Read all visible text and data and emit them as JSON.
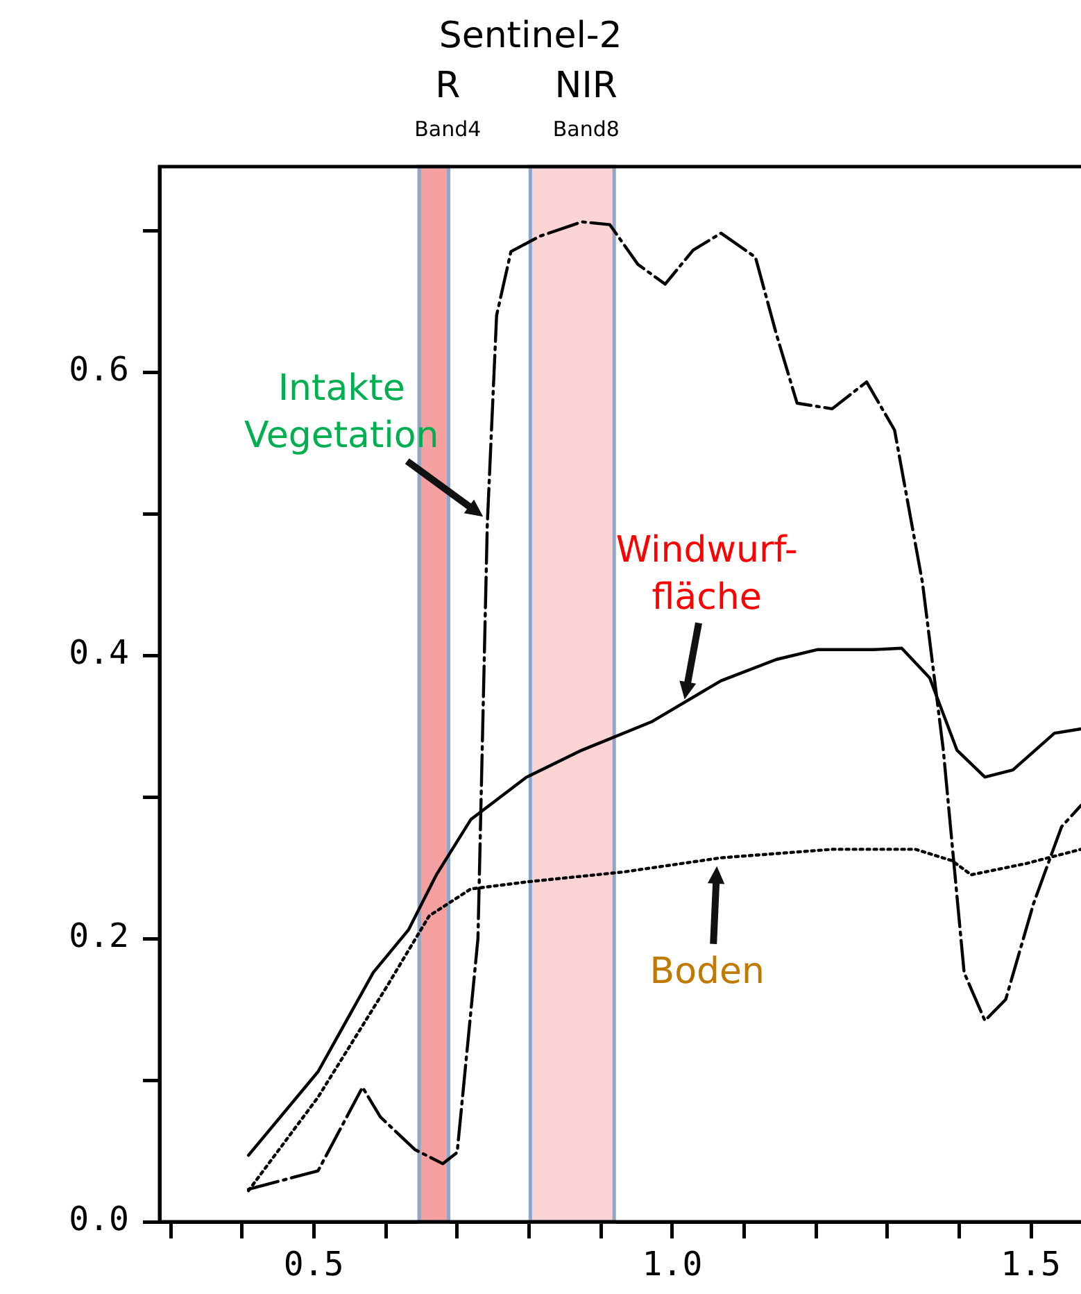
{
  "chart_data": {
    "type": "line",
    "title": "Sentinel-2",
    "xlim": [
      0.285,
      1.57
    ],
    "ylim": [
      0,
      0.745
    ],
    "xticks": [
      {
        "value": 0.3,
        "label": null
      },
      {
        "value": 0.4,
        "label": null
      },
      0.5,
      {
        "value": 0.6,
        "label": null
      },
      {
        "value": 0.7,
        "label": null
      },
      {
        "value": 0.8,
        "label": null
      },
      {
        "value": 0.9,
        "label": null
      },
      {
        "value": 1.0,
        "label": "1.0"
      },
      {
        "value": 1.1,
        "label": null
      },
      {
        "value": 1.2,
        "label": null
      },
      {
        "value": 1.3,
        "label": null
      },
      {
        "value": 1.4,
        "label": null
      },
      1.5
    ],
    "yticks": [
      {
        "value": 0,
        "label": "0.0"
      },
      {
        "value": 0.1,
        "label": null
      },
      0.2,
      {
        "value": 0.3,
        "label": null
      },
      0.4,
      {
        "value": 0.5,
        "label": null
      },
      0.6,
      {
        "value": 0.7,
        "label": null
      }
    ],
    "grid": false,
    "legend": false,
    "marker": "none",
    "series": [
      {
        "color": "#000000",
        "line_style": "dashdot",
        "x": [
          0.409,
          0.506,
          0.568,
          0.593,
          0.641,
          0.68,
          0.7,
          0.729,
          0.742,
          0.755,
          0.775,
          0.816,
          0.874,
          0.913,
          0.952,
          0.99,
          1.029,
          1.068,
          1.116,
          1.145,
          1.174,
          1.223,
          1.271,
          1.31,
          1.349,
          1.378,
          1.407,
          1.436,
          1.465,
          1.504,
          1.543,
          1.57
        ],
        "values": [
          0.023,
          0.036,
          0.095,
          0.074,
          0.051,
          0.041,
          0.049,
          0.2,
          0.492,
          0.64,
          0.685,
          0.696,
          0.706,
          0.704,
          0.676,
          0.662,
          0.686,
          0.698,
          0.681,
          0.627,
          0.578,
          0.574,
          0.593,
          0.559,
          0.451,
          0.333,
          0.176,
          0.142,
          0.157,
          0.225,
          0.279,
          0.294
        ]
      },
      {
        "color": "#000000",
        "line_style": "solid",
        "x": [
          0.409,
          0.506,
          0.583,
          0.632,
          0.671,
          0.719,
          0.797,
          0.874,
          0.971,
          1.068,
          1.145,
          1.203,
          1.281,
          1.32,
          1.359,
          1.397,
          1.436,
          1.475,
          1.533,
          1.57
        ],
        "values": [
          0.047,
          0.106,
          0.176,
          0.206,
          0.245,
          0.284,
          0.314,
          0.333,
          0.353,
          0.382,
          0.397,
          0.404,
          0.404,
          0.405,
          0.384,
          0.333,
          0.314,
          0.319,
          0.345,
          0.348
        ]
      },
      {
        "color": "#000000",
        "line_style": "dotted",
        "x": [
          0.409,
          0.506,
          0.603,
          0.661,
          0.719,
          0.797,
          0.932,
          1.068,
          1.223,
          1.339,
          1.39,
          1.417,
          1.494,
          1.57
        ],
        "values": [
          0.022,
          0.088,
          0.167,
          0.216,
          0.235,
          0.24,
          0.247,
          0.257,
          0.263,
          0.263,
          0.255,
          0.245,
          0.253,
          0.263
        ]
      }
    ],
    "bands": [
      {
        "axis": "x",
        "from": 0.647,
        "to": 0.688,
        "label": "R\nBand4",
        "color": "#f4a0a0"
      },
      {
        "axis": "x",
        "from": 0.802,
        "to": 0.919,
        "label": "NIR\nBand8",
        "color": "#fad4d4"
      }
    ],
    "annotations": [
      {
        "text": "Intakte\nVegetation",
        "x": 0.742,
        "y": 0.492
      },
      {
        "text": "Windwurf-\nfläche",
        "x": 1.023,
        "y": 0.363
      },
      {
        "text": "Boden",
        "x": 1.068,
        "y": 0.257
      }
    ]
  }
}
